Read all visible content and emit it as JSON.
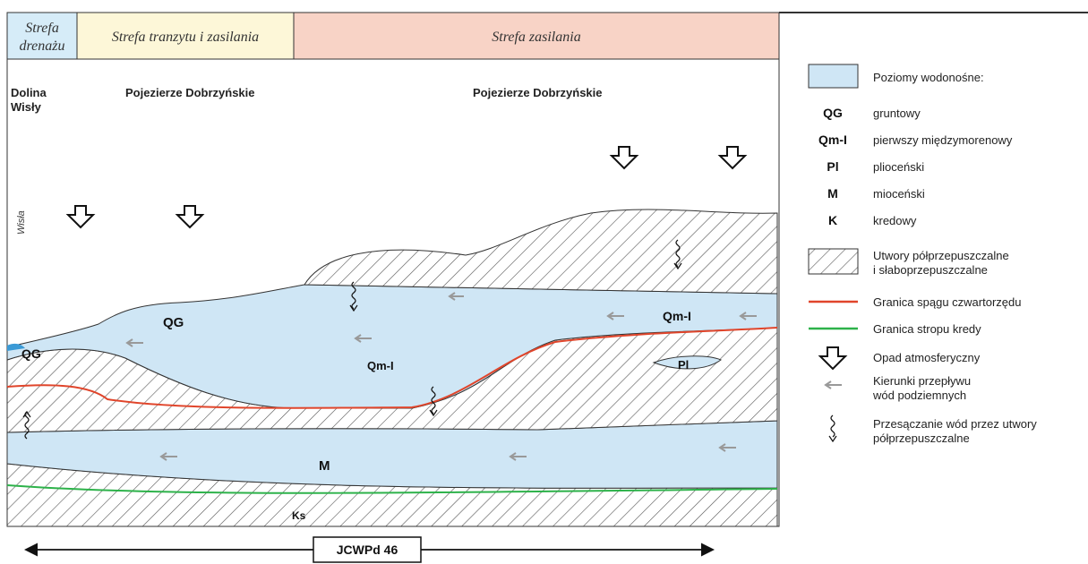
{
  "zones": {
    "drainage_line1": "Strefa",
    "drainage_line2": "drenażu",
    "transit": "Strefa tranzytu i zasilania",
    "recharge": "Strefa zasilania"
  },
  "regions": {
    "dolina_line1": "Dolina",
    "dolina_line2": "Wisły",
    "pojezierze_left": "Pojezierze Dobrzyńskie",
    "pojezierze_right": "Pojezierze Dobrzyńskie",
    "river": "Wisła"
  },
  "layer_labels": {
    "qg_main": "QG",
    "qg_edge": "QG",
    "qm_center": "Qm-I",
    "qm_right": "Qm-I",
    "pl": "Pl",
    "m": "M",
    "k": "Ks"
  },
  "legend": {
    "aquifers_title": "Poziomy wodonośne:",
    "items": [
      {
        "symbol": "QG",
        "label": "gruntowy"
      },
      {
        "symbol": "Qm-I",
        "label": "pierwszy międzymorenowy"
      },
      {
        "symbol": "Pl",
        "label": "plioceński"
      },
      {
        "symbol": "M",
        "label": "mioceński"
      },
      {
        "symbol": "K",
        "label": "kredowy"
      }
    ],
    "semi_line1": "Utwory półprzepuszczalne",
    "semi_line2": "i słaboprzepuszczalne",
    "red_line": "Granica spągu czwartorzędu",
    "green_line": "Granica stropu kredy",
    "precip": "Opad atmosferyczny",
    "flow_line1": "Kierunki przepływu",
    "flow_line2": "wód podziemnych",
    "seep_line1": "Przesączanie wód przez utwory",
    "seep_line2": "półprzepuszczalne"
  },
  "scale_label": "JCWPd 46",
  "colors": {
    "aquifer": "#cfe6f5",
    "drainage_bg": "#d6ecf8",
    "transit_bg": "#fdf7d8",
    "recharge_bg": "#f8d3c6",
    "red_line": "#e0452b",
    "green_line": "#2db24a",
    "arrow_gray": "#999999"
  },
  "icons": [
    "precipitation-arrow-icon",
    "flow-arrow-icon",
    "seepage-wave-icon"
  ]
}
